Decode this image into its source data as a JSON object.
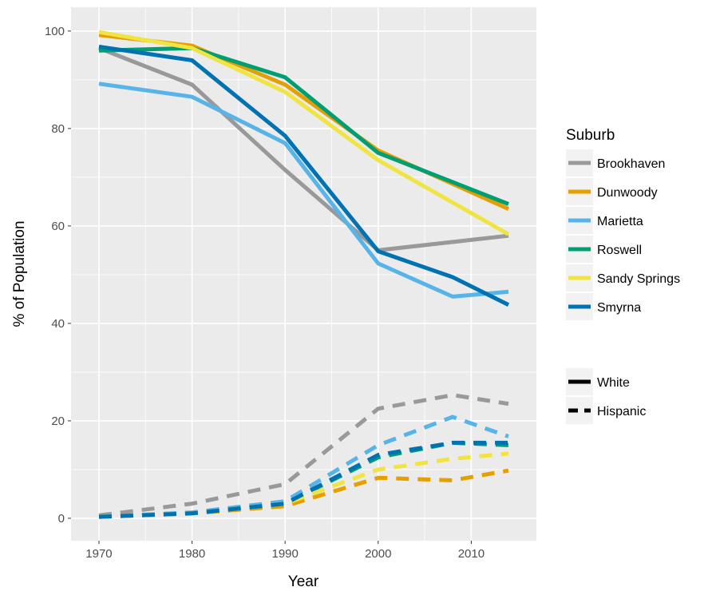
{
  "chart_data": {
    "type": "line",
    "xlabel": "Year",
    "ylabel": "% of Population",
    "xlim": [
      1967,
      2017
    ],
    "ylim": [
      -4.6,
      104.9
    ],
    "x_ticks": [
      "1970",
      "1980",
      "1990",
      "2000",
      "2010"
    ],
    "y_ticks": [
      "0",
      "20",
      "40",
      "60",
      "80",
      "100"
    ],
    "grid": true,
    "legend_placement": "right",
    "legend_title": "Suburb",
    "linetype_legend": [
      {
        "label": "White",
        "dash": "solid"
      },
      {
        "label": "Hispanic",
        "dash": "dashed"
      }
    ],
    "series": [
      {
        "name": "Brookhaven",
        "color": "#999999",
        "group": "White",
        "x": [
          1970,
          1980,
          1990,
          2000,
          2014
        ],
        "y": [
          96.5,
          89.0,
          71.5,
          55.0,
          58.0
        ]
      },
      {
        "name": "Dunwoody",
        "color": "#E69F00",
        "group": "White",
        "x": [
          1970,
          1980,
          1990,
          2000,
          2014
        ],
        "y": [
          99.2,
          97.0,
          89.0,
          75.5,
          63.5
        ]
      },
      {
        "name": "Marietta",
        "color": "#56B4E9",
        "group": "White",
        "x": [
          1970,
          1980,
          1990,
          2000,
          2008,
          2014
        ],
        "y": [
          89.2,
          86.5,
          77.0,
          52.3,
          45.5,
          46.5
        ]
      },
      {
        "name": "Roswell",
        "color": "#009E73",
        "group": "White",
        "x": [
          1970,
          1980,
          1990,
          2000,
          2014
        ],
        "y": [
          96.0,
          96.5,
          90.5,
          75.0,
          64.5
        ]
      },
      {
        "name": "Sandy Springs",
        "color": "#F0E442",
        "group": "White",
        "x": [
          1970,
          1980,
          1990,
          2000,
          2014
        ],
        "y": [
          99.8,
          96.5,
          87.5,
          73.5,
          58.3
        ]
      },
      {
        "name": "Smyrna",
        "color": "#0072B2",
        "group": "White",
        "x": [
          1970,
          1980,
          1990,
          2000,
          2008,
          2014
        ],
        "y": [
          96.8,
          94.0,
          78.5,
          54.8,
          49.5,
          43.8
        ]
      },
      {
        "name": "Brookhaven",
        "color": "#999999",
        "group": "Hispanic",
        "x": [
          1970,
          1980,
          1990,
          2000,
          2008,
          2014
        ],
        "y": [
          0.6,
          3.0,
          7.0,
          22.5,
          25.3,
          23.5
        ]
      },
      {
        "name": "Dunwoody",
        "color": "#E69F00",
        "group": "Hispanic",
        "x": [
          1970,
          1980,
          1990,
          2000,
          2008,
          2014
        ],
        "y": [
          0.3,
          1.0,
          2.5,
          8.3,
          7.8,
          9.8
        ]
      },
      {
        "name": "Marietta",
        "color": "#56B4E9",
        "group": "Hispanic",
        "x": [
          1970,
          1980,
          1990,
          2000,
          2008,
          2014
        ],
        "y": [
          0.3,
          1.2,
          3.5,
          15.0,
          20.8,
          16.8
        ]
      },
      {
        "name": "Roswell",
        "color": "#009E73",
        "group": "Hispanic",
        "x": [
          1970,
          1980,
          1990,
          2000,
          2008,
          2014
        ],
        "y": [
          0.3,
          1.0,
          3.0,
          12.5,
          15.5,
          15.0
        ]
      },
      {
        "name": "Sandy Springs",
        "color": "#F0E442",
        "group": "Hispanic",
        "x": [
          1970,
          1980,
          1990,
          2000,
          2008,
          2014
        ],
        "y": [
          0.3,
          1.0,
          3.0,
          10.0,
          12.2,
          13.3
        ]
      },
      {
        "name": "Smyrna",
        "color": "#0072B2",
        "group": "Hispanic",
        "x": [
          1970,
          1980,
          1990,
          2000,
          2008,
          2014
        ],
        "y": [
          0.3,
          1.0,
          3.0,
          13.0,
          15.5,
          15.5
        ]
      }
    ]
  }
}
